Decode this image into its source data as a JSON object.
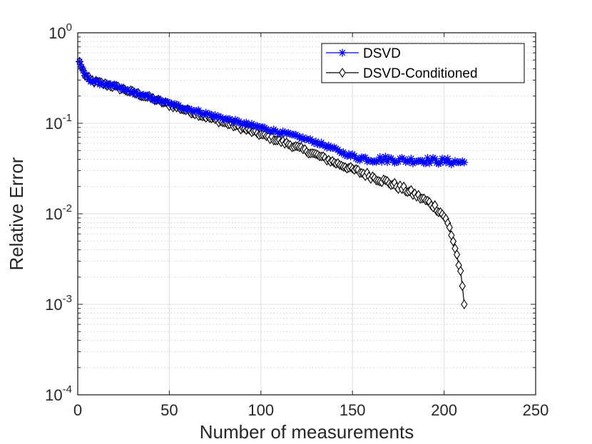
{
  "chart_data": {
    "type": "line",
    "xlabel": "Number of measurements",
    "ylabel": "Relative Error",
    "yscale": "log",
    "xlim": [
      0,
      250
    ],
    "ylim": [
      0.0001,
      1
    ],
    "xticks": [
      0,
      50,
      100,
      150,
      200,
      250
    ],
    "yticks": [
      {
        "value": 1,
        "base": "10",
        "exp": "0"
      },
      {
        "value": 0.1,
        "base": "10",
        "exp": "-1"
      },
      {
        "value": 0.01,
        "base": "10",
        "exp": "-2"
      },
      {
        "value": 0.001,
        "base": "10",
        "exp": "-3"
      },
      {
        "value": 0.0001,
        "base": "10",
        "exp": "-4"
      }
    ],
    "grid": true,
    "legend_position": "top-right",
    "series": [
      {
        "name": "DSVD",
        "color": "#0000ff",
        "marker": "asterisk",
        "key_points": [
          [
            1,
            0.48
          ],
          [
            2,
            0.42
          ],
          [
            4,
            0.34
          ],
          [
            7,
            0.3
          ],
          [
            10,
            0.285
          ],
          [
            20,
            0.255
          ],
          [
            30,
            0.22
          ],
          [
            40,
            0.19
          ],
          [
            50,
            0.165
          ],
          [
            60,
            0.145
          ],
          [
            70,
            0.128
          ],
          [
            80,
            0.113
          ],
          [
            90,
            0.1
          ],
          [
            100,
            0.09
          ],
          [
            110,
            0.08
          ],
          [
            120,
            0.071
          ],
          [
            130,
            0.062
          ],
          [
            140,
            0.052
          ],
          [
            145,
            0.047
          ],
          [
            150,
            0.043
          ],
          [
            160,
            0.04
          ],
          [
            170,
            0.04
          ],
          [
            180,
            0.039
          ],
          [
            190,
            0.039
          ],
          [
            200,
            0.038
          ],
          [
            211,
            0.037
          ]
        ]
      },
      {
        "name": "DSVD-Conditioned",
        "color": "#000000",
        "marker": "diamond",
        "key_points": [
          [
            1,
            0.48
          ],
          [
            2,
            0.42
          ],
          [
            4,
            0.34
          ],
          [
            7,
            0.3
          ],
          [
            10,
            0.285
          ],
          [
            20,
            0.255
          ],
          [
            30,
            0.22
          ],
          [
            40,
            0.19
          ],
          [
            50,
            0.16
          ],
          [
            60,
            0.138
          ],
          [
            70,
            0.118
          ],
          [
            80,
            0.102
          ],
          [
            90,
            0.088
          ],
          [
            100,
            0.075
          ],
          [
            110,
            0.064
          ],
          [
            120,
            0.054
          ],
          [
            130,
            0.045
          ],
          [
            140,
            0.037
          ],
          [
            150,
            0.031
          ],
          [
            160,
            0.026
          ],
          [
            170,
            0.022
          ],
          [
            180,
            0.018
          ],
          [
            190,
            0.014
          ],
          [
            195,
            0.012
          ],
          [
            200,
            0.0095
          ],
          [
            203,
            0.007
          ],
          [
            205,
            0.005
          ],
          [
            207,
            0.0035
          ],
          [
            209,
            0.0022
          ],
          [
            210,
            0.0015
          ],
          [
            211,
            0.001
          ]
        ]
      }
    ]
  }
}
